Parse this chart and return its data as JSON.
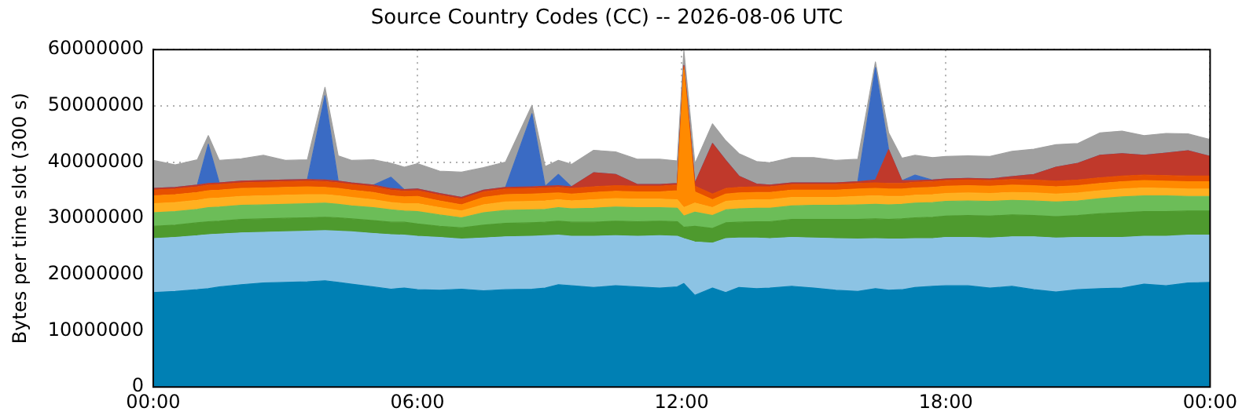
{
  "chart_data": {
    "type": "area",
    "title": "Source Country Codes (CC) -- 2026-08-06 UTC",
    "ylabel": "Bytes per time slot (300 s)",
    "stacked": true,
    "grid": true,
    "legend": false,
    "marker": "none",
    "x": [
      0,
      0.5,
      1,
      1.25,
      1.5,
      2,
      2.5,
      3,
      3.5,
      3.9,
      4.2,
      4.5,
      5,
      5.4,
      5.7,
      6,
      6.5,
      7,
      7.5,
      8,
      8.6,
      8.9,
      9.2,
      9.5,
      10,
      10.5,
      11,
      11.5,
      11.9,
      12.05,
      12.3,
      12.7,
      13,
      13.3,
      13.7,
      14,
      14.5,
      15,
      15.5,
      16,
      16.4,
      16.7,
      17,
      17.3,
      17.7,
      18,
      18.5,
      19,
      19.5,
      20,
      20.5,
      21,
      21.5,
      22,
      22.5,
      23,
      23.5,
      24
    ],
    "xlim": [
      0,
      24
    ],
    "xticks": [
      {
        "value": 0,
        "label": "00:00"
      },
      {
        "value": 6,
        "label": "06:00"
      },
      {
        "value": 12,
        "label": "12:00"
      },
      {
        "value": 18,
        "label": "18:00"
      },
      {
        "value": 24,
        "label": "00:00"
      }
    ],
    "ylim": [
      0,
      60000000
    ],
    "yticks": [
      0,
      10000000,
      20000000,
      30000000,
      40000000,
      50000000,
      60000000
    ],
    "series": [
      {
        "color": "#0080b4",
        "values": [
          16800000,
          17000000,
          17300000,
          17500000,
          17800000,
          18200000,
          18500000,
          18600000,
          18700000,
          18900000,
          18600000,
          18300000,
          17800000,
          17400000,
          17600000,
          17300000,
          17200000,
          17400000,
          17100000,
          17300000,
          17400000,
          17600000,
          18200000,
          18000000,
          17700000,
          18000000,
          17800000,
          17600000,
          17800000,
          18400000,
          16300000,
          17600000,
          16800000,
          17700000,
          17500000,
          17600000,
          17900000,
          17600000,
          17200000,
          17000000,
          17500000,
          17200000,
          17300000,
          17700000,
          17900000,
          18000000,
          18000000,
          17600000,
          17900000,
          17300000,
          16900000,
          17300000,
          17500000,
          17600000,
          18300000,
          18000000,
          18500000,
          18600000
        ]
      },
      {
        "color": "#8cc3e4",
        "values": [
          9600000,
          9600000,
          9600000,
          9600000,
          9400000,
          9200000,
          9000000,
          9000000,
          9000000,
          8900000,
          9100000,
          9300000,
          9500000,
          9700000,
          9400000,
          9500000,
          9400000,
          8900000,
          9400000,
          9400000,
          9400000,
          9300000,
          8800000,
          8800000,
          9100000,
          8900000,
          9000000,
          9300000,
          9000000,
          8000000,
          9500000,
          8000000,
          9600000,
          8800000,
          9000000,
          8800000,
          8700000,
          8900000,
          9200000,
          9300000,
          8900000,
          9100000,
          9000000,
          8700000,
          8500000,
          8600000,
          8600000,
          8900000,
          8800000,
          9400000,
          9600000,
          9300000,
          9100000,
          9000000,
          8500000,
          8800000,
          8500000,
          8400000
        ]
      },
      {
        "color": "#4e9a2e",
        "values": [
          2200000,
          2200000,
          2300000,
          2300000,
          2300000,
          2400000,
          2400000,
          2400000,
          2400000,
          2400000,
          2400000,
          2300000,
          2300000,
          2200000,
          2300000,
          2200000,
          2000000,
          2000000,
          2300000,
          2400000,
          2400000,
          2400000,
          2500000,
          2500000,
          2500000,
          2600000,
          2600000,
          2600000,
          2600000,
          2000000,
          2800000,
          2600000,
          2800000,
          2800000,
          2900000,
          3000000,
          3200000,
          3300000,
          3400000,
          3500000,
          3500000,
          3500000,
          3600000,
          3700000,
          3800000,
          3800000,
          3900000,
          3900000,
          3900000,
          3800000,
          3800000,
          3900000,
          4200000,
          4400000,
          4400000,
          4400000,
          4300000,
          4300000
        ]
      },
      {
        "color": "#6cbd58",
        "values": [
          2400000,
          2400000,
          2400000,
          2500000,
          2500000,
          2500000,
          2500000,
          2500000,
          2500000,
          2500000,
          2400000,
          2300000,
          2300000,
          2200000,
          2000000,
          2200000,
          2000000,
          1800000,
          2200000,
          2300000,
          2300000,
          2300000,
          2400000,
          2400000,
          2500000,
          2500000,
          2500000,
          2400000,
          2400000,
          2000000,
          2500000,
          2300000,
          2300000,
          2400000,
          2400000,
          2400000,
          2400000,
          2500000,
          2500000,
          2600000,
          2600000,
          2600000,
          2600000,
          2600000,
          2600000,
          2600000,
          2600000,
          2600000,
          2600000,
          2600000,
          2600000,
          2600000,
          2700000,
          2800000,
          2800000,
          2800000,
          2600000,
          2600000
        ]
      },
      {
        "color": "#ffb020",
        "values": [
          1600000,
          1600000,
          1600000,
          1600000,
          1600000,
          1600000,
          1600000,
          1600000,
          1600000,
          1500000,
          1500000,
          1500000,
          1400000,
          1300000,
          1300000,
          1400000,
          1300000,
          1200000,
          1400000,
          1500000,
          1500000,
          1500000,
          1400000,
          1400000,
          1500000,
          1500000,
          1500000,
          1500000,
          1500000,
          1500000,
          1600000,
          1400000,
          1500000,
          1500000,
          1500000,
          1500000,
          1500000,
          1400000,
          1400000,
          1500000,
          1500000,
          1500000,
          1400000,
          1400000,
          1400000,
          1400000,
          1400000,
          1400000,
          1400000,
          1400000,
          1400000,
          1400000,
          1400000,
          1400000,
          1400000,
          1300000,
          1300000,
          1300000
        ]
      },
      {
        "color": "#ff8a00",
        "values": [
          1400000,
          1400000,
          1400000,
          1400000,
          1400000,
          1400000,
          1400000,
          1400000,
          1400000,
          1300000,
          1300000,
          1300000,
          1300000,
          1200000,
          1200000,
          1300000,
          1200000,
          1100000,
          1300000,
          1300000,
          1300000,
          1300000,
          1200000,
          1200000,
          1300000,
          1300000,
          1300000,
          1300000,
          1600000,
          24500000,
          2000000,
          1400000,
          1300000,
          1300000,
          1300000,
          1300000,
          1300000,
          1300000,
          1300000,
          1300000,
          1300000,
          1300000,
          1300000,
          1300000,
          1300000,
          1300000,
          1300000,
          1300000,
          1300000,
          1300000,
          1300000,
          1300000,
          1300000,
          1300000,
          1300000,
          1300000,
          1300000,
          1300000
        ]
      },
      {
        "color": "#e65000",
        "values": [
          1000000,
          1000000,
          1000000,
          1000000,
          1000000,
          1000000,
          1000000,
          1000000,
          1000000,
          1000000,
          1000000,
          1000000,
          1000000,
          1000000,
          1000000,
          1000000,
          1000000,
          1000000,
          1000000,
          1000000,
          1000000,
          1000000,
          1000000,
          1000000,
          1000000,
          1000000,
          1000000,
          1000000,
          1000000,
          500000,
          1000000,
          1000000,
          1000000,
          1000000,
          1000000,
          1000000,
          1000000,
          1000000,
          1000000,
          1000000,
          1000000,
          1000000,
          1000000,
          1000000,
          1000000,
          1000000,
          1000000,
          1000000,
          1000000,
          1000000,
          1000000,
          1000000,
          1000000,
          1000000,
          1000000,
          1000000,
          1000000,
          1000000
        ]
      },
      {
        "color": "#c0392b",
        "values": [
          300000,
          300000,
          300000,
          300000,
          300000,
          300000,
          300000,
          300000,
          300000,
          300000,
          300000,
          300000,
          300000,
          300000,
          300000,
          300000,
          300000,
          300000,
          300000,
          300000,
          300000,
          300000,
          300000,
          300000,
          2500000,
          2000000,
          300000,
          300000,
          300000,
          300000,
          500000,
          9000000,
          5000000,
          2000000,
          500000,
          300000,
          300000,
          300000,
          300000,
          300000,
          500000,
          6000000,
          500000,
          300000,
          300000,
          300000,
          300000,
          300000,
          500000,
          1000000,
          2500000,
          3000000,
          4000000,
          4000000,
          3500000,
          4000000,
          4500000,
          3500000
        ]
      },
      {
        "color": "#3a6bc4",
        "values": [
          0,
          0,
          0,
          7000000,
          0,
          0,
          0,
          0,
          0,
          15000000,
          0,
          0,
          0,
          2000000,
          0,
          0,
          0,
          0,
          0,
          0,
          13000000,
          0,
          2000000,
          0,
          0,
          0,
          0,
          0,
          0,
          0,
          0,
          0,
          0,
          0,
          0,
          0,
          0,
          0,
          0,
          0,
          20000000,
          0,
          0,
          1000000,
          0,
          0,
          0,
          0,
          0,
          0,
          0,
          0,
          0,
          0,
          0,
          0,
          0,
          0
        ]
      },
      {
        "color": "#a0a0a0",
        "values": [
          5000000,
          4000000,
          4500000,
          1500000,
          4000000,
          4000000,
          4500000,
          3500000,
          3500000,
          1500000,
          4500000,
          4000000,
          4500000,
          2500000,
          4000000,
          4500000,
          4000000,
          4500000,
          4000000,
          4500000,
          1500000,
          3500000,
          2500000,
          4000000,
          4000000,
          4000000,
          4500000,
          4500000,
          4000000,
          2600000,
          3500000,
          3500000,
          3500000,
          4000000,
          4000000,
          4000000,
          4500000,
          4500000,
          4000000,
          4000000,
          1000000,
          3000000,
          4000000,
          3500000,
          4000000,
          4000000,
          4000000,
          4000000,
          4500000,
          4500000,
          4000000,
          3500000,
          4000000,
          4000000,
          3500000,
          3500000,
          3000000,
          3000000
        ]
      }
    ]
  }
}
